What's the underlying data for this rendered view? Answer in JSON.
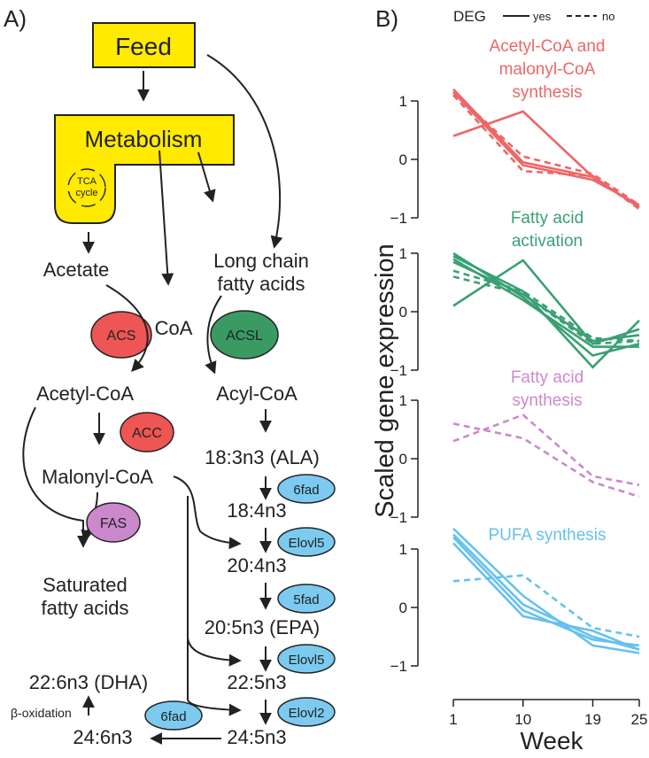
{
  "panel_a": {
    "label": "A)",
    "feed": "Feed",
    "metabolism": "Metabolism",
    "tca_line1": "TCA",
    "tca_line2": "cycle",
    "acetate": "Acetate",
    "lcfa_line1": "Long chain",
    "lcfa_line2": "fatty acids",
    "coa": "CoA",
    "acs": "ACS",
    "acsl": "ACSL",
    "acetyl_coa": "Acetyl-CoA",
    "acyl_coa": "Acyl-CoA",
    "acc": "ACC",
    "malonyl_coa": "Malonyl-CoA",
    "fas": "FAS",
    "sfa_line1": "Saturated",
    "sfa_line2": "fatty acids",
    "ala": "18:3n3 (ALA)",
    "fa_18_4": "18:4n3",
    "fa_20_4": "20:4n3",
    "epa": "20:5n3 (EPA)",
    "fa_22_5": "22:5n3",
    "fa_24_5": "24:5n3",
    "fa_24_6": "24:6n3",
    "dha": "22:6n3 (DHA)",
    "beta_ox": "β-oxidation",
    "enz_6fad_1": "6fad",
    "enz_elovl5_1": "Elovl5",
    "enz_5fad": "5fad",
    "enz_elovl5_2": "Elovl5",
    "enz_elovl2": "Elovl2",
    "enz_6fad_2": "6fad"
  },
  "panel_b": {
    "label": "B)",
    "legend_title": "DEG",
    "legend_yes": "yes",
    "legend_no": "no",
    "ylabel": "Scaled gene expression",
    "xlabel": "Week",
    "x_ticks": [
      "1",
      "10",
      "19",
      "25"
    ]
  },
  "colors": {
    "feed_box": "#ffea00",
    "red_enzyme": "#ee5555",
    "green_enzyme": "#3a9a64",
    "purple_enzyme": "#cc88cc",
    "blue_enzyme": "#7ccaf0",
    "line_red": "#ee6666",
    "line_green": "#3aa073",
    "line_purple": "#cc88cc",
    "line_blue": "#66c1ee"
  },
  "chart_data": [
    {
      "type": "line",
      "title": "Acetyl-CoA and malonyl-CoA synthesis",
      "title_lines": [
        "Acetyl-CoA and",
        "malonyl-CoA",
        "synthesis"
      ],
      "color": "#ee6666",
      "x": [
        1,
        10,
        19,
        25
      ],
      "y_ticks": [
        "1",
        "0",
        "−1"
      ],
      "ylim": [
        -1,
        1
      ],
      "series": [
        {
          "deg": "yes",
          "values": [
            0.4,
            0.82,
            -0.3,
            -0.82
          ]
        },
        {
          "deg": "yes",
          "values": [
            1.2,
            -0.05,
            -0.3,
            -0.82
          ]
        },
        {
          "deg": "yes",
          "values": [
            1.15,
            -0.1,
            -0.35,
            -0.78
          ]
        },
        {
          "deg": "no",
          "values": [
            1.15,
            0.05,
            -0.25,
            -0.78
          ]
        },
        {
          "deg": "no",
          "values": [
            1.1,
            -0.2,
            -0.28,
            -0.85
          ]
        }
      ]
    },
    {
      "type": "line",
      "title": "Fatty acid activation",
      "title_lines": [
        "Fatty acid",
        "activation"
      ],
      "color": "#3aa073",
      "x": [
        1,
        10,
        19,
        25
      ],
      "y_ticks": [
        "1",
        "0",
        "−1"
      ],
      "ylim": [
        -1,
        1
      ],
      "series": [
        {
          "deg": "yes",
          "values": [
            0.1,
            0.88,
            -0.55,
            -0.3
          ]
        },
        {
          "deg": "yes",
          "values": [
            0.95,
            0.35,
            -0.95,
            -0.15
          ]
        },
        {
          "deg": "yes",
          "values": [
            1.0,
            0.25,
            -0.75,
            -0.55
          ]
        },
        {
          "deg": "yes",
          "values": [
            0.9,
            0.2,
            -0.6,
            -0.6
          ]
        },
        {
          "deg": "yes",
          "values": [
            0.85,
            0.3,
            -0.5,
            -0.4
          ]
        },
        {
          "deg": "no",
          "values": [
            0.7,
            0.35,
            -0.45,
            -0.5
          ]
        },
        {
          "deg": "no",
          "values": [
            0.6,
            0.3,
            -0.55,
            -0.5
          ]
        }
      ]
    },
    {
      "type": "line",
      "title": "Fatty acid synthesis",
      "title_lines": [
        "Fatty acid",
        "synthesis"
      ],
      "color": "#cc88cc",
      "x": [
        1,
        10,
        19,
        25
      ],
      "y_ticks": [
        "1",
        "0",
        "−1"
      ],
      "ylim": [
        -1,
        1
      ],
      "series": [
        {
          "deg": "no",
          "values": [
            0.3,
            0.75,
            -0.3,
            -0.45
          ]
        },
        {
          "deg": "no",
          "values": [
            0.6,
            0.35,
            -0.4,
            -0.65
          ]
        }
      ]
    },
    {
      "type": "line",
      "title": "PUFA synthesis",
      "title_lines": [
        "PUFA synthesis"
      ],
      "color": "#66c1ee",
      "x": [
        1,
        10,
        19,
        25
      ],
      "y_ticks": [
        "1",
        "0",
        "−1"
      ],
      "ylim": [
        -1,
        1
      ],
      "series": [
        {
          "deg": "yes",
          "values": [
            1.35,
            0.2,
            -0.65,
            -0.78
          ]
        },
        {
          "deg": "yes",
          "values": [
            1.25,
            0.05,
            -0.5,
            -0.72
          ]
        },
        {
          "deg": "yes",
          "values": [
            1.1,
            -0.15,
            -0.4,
            -0.72
          ]
        },
        {
          "deg": "yes",
          "values": [
            1.2,
            -0.05,
            -0.55,
            -0.65
          ]
        },
        {
          "deg": "no",
          "values": [
            0.45,
            0.55,
            -0.35,
            -0.5
          ]
        }
      ]
    }
  ]
}
